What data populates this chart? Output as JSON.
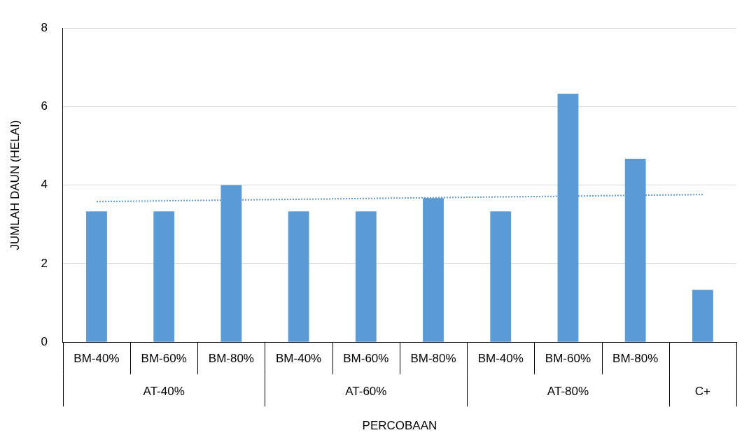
{
  "chart_data": {
    "type": "bar",
    "xlabel": "PERCOBAAN",
    "ylabel": "JUMLAH DAUN (HELAI)",
    "categories": [
      "BM-40%",
      "BM-60%",
      "BM-80%",
      "BM-40%",
      "BM-60%",
      "BM-80%",
      "BM-40%",
      "BM-60%",
      "BM-80%",
      null
    ],
    "series": [
      {
        "color": "#5b9bd5",
        "values": [
          3.33,
          3.33,
          4,
          3.33,
          3.33,
          3.67,
          3.33,
          6.33,
          4.67,
          1.33
        ]
      },
      {
        "type": "line",
        "color": "#5b9bd5",
        "line_style": "dotted",
        "values": [
          3.58,
          3.6,
          3.62,
          3.64,
          3.66,
          3.68,
          3.7,
          3.72,
          3.74,
          3.76
        ]
      }
    ],
    "annotations": [
      "AT-40%",
      "AT-60%",
      "AT-80%",
      "C+"
    ],
    "ylim": [
      0,
      8
    ],
    "yticks": [
      0,
      2,
      4,
      6,
      8
    ],
    "grid": "y",
    "legend": false
  }
}
